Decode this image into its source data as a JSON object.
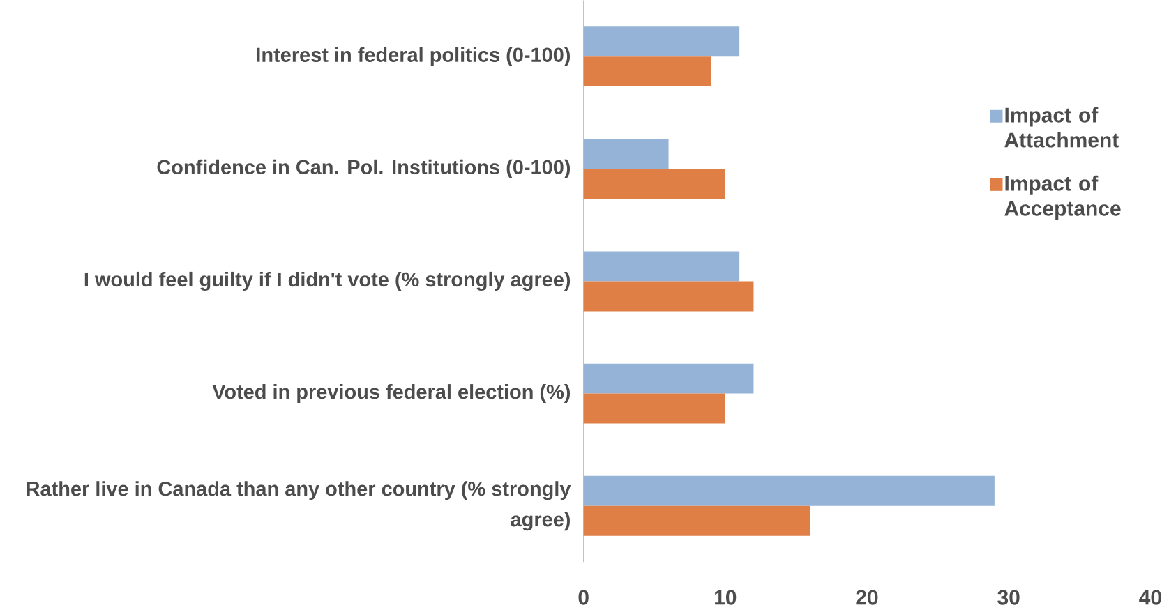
{
  "chart_data": {
    "type": "bar",
    "orientation": "horizontal",
    "categories": [
      "Interest in federal politics (0-100)",
      "Confidence in Can. Pol. Institutions (0-100)",
      "I would feel guilty if I didn't vote (% strongly agree)",
      "Voted in previous federal election (%)",
      "Rather live in Canada than any other country (% strongly agree)"
    ],
    "series": [
      {
        "name": "Impact of Attachment",
        "color": "#95b3d7",
        "values": [
          11,
          6,
          11,
          12,
          29
        ]
      },
      {
        "name": "Impact of Acceptance",
        "color": "#e07f45",
        "values": [
          9,
          10,
          12,
          10,
          16
        ]
      }
    ],
    "xlim": [
      0,
      40
    ],
    "xticks": [
      0,
      10,
      20,
      30,
      40
    ],
    "legend": "right"
  }
}
